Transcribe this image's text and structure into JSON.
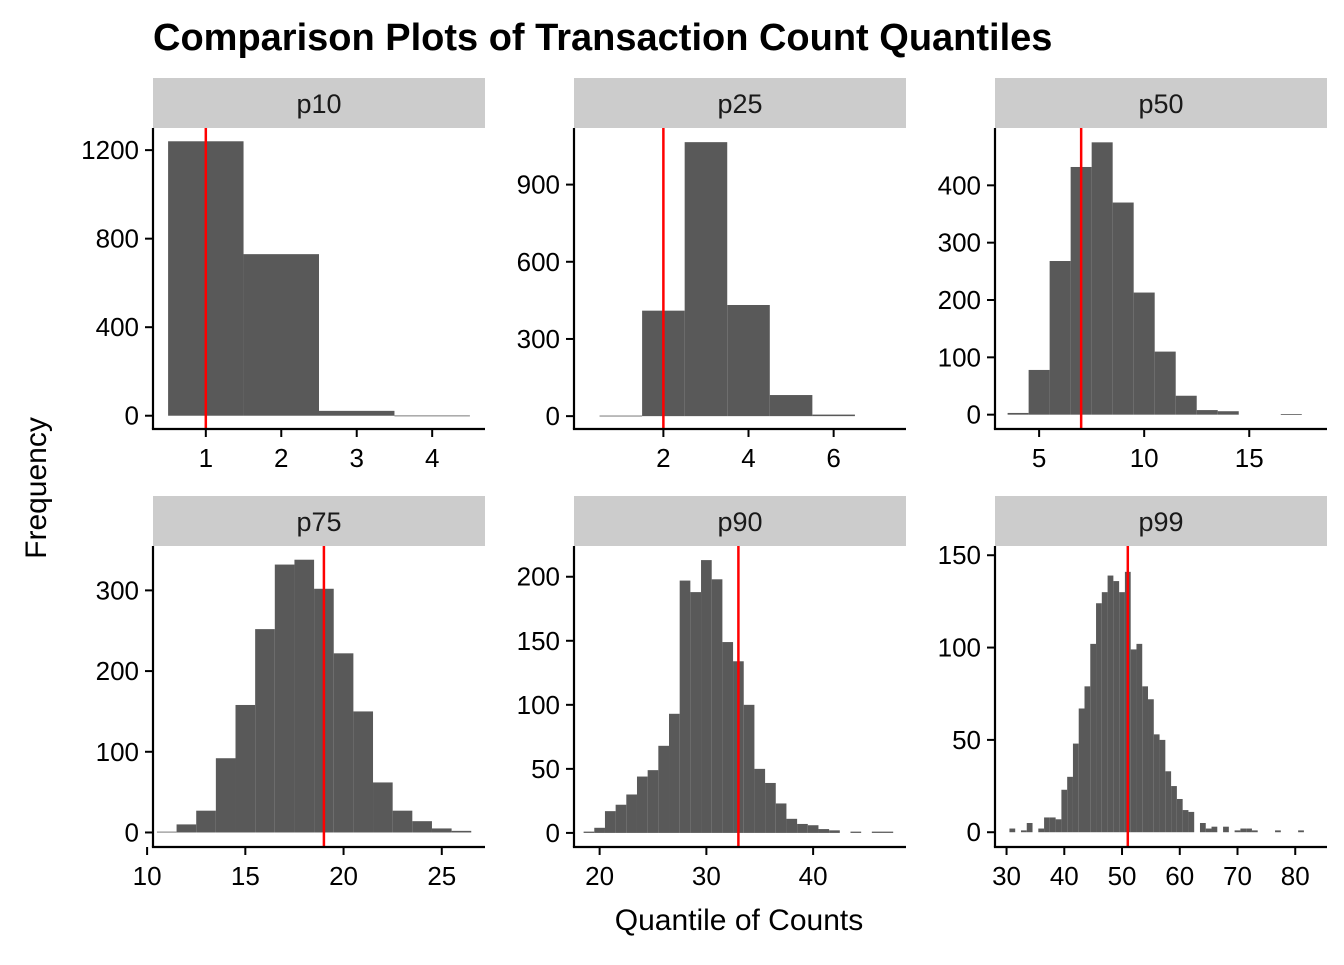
{
  "chart_data": {
    "type": "bar",
    "title": "Comparison Plots of Transaction Count Quantiles",
    "xlabel": "Quantile of Counts",
    "ylabel": "Frequency",
    "grid": false,
    "bar_color": "#595959",
    "reference_line_color": "#ff0000",
    "strip_color": "#cccccc",
    "panels": [
      {
        "label": "p10",
        "xlim": [
          0.3,
          4.7
        ],
        "ylim": [
          -60,
          1300
        ],
        "xticks": [
          1,
          2,
          3,
          4
        ],
        "yticks": [
          0,
          400,
          800,
          1200
        ],
        "bin_width": 1,
        "bins": [
          [
            1,
            1240
          ],
          [
            2,
            730
          ],
          [
            3,
            22
          ],
          [
            4,
            1
          ]
        ],
        "reference_line": 1
      },
      {
        "label": "p25",
        "xlim": [
          -0.1,
          7.7
        ],
        "ylim": [
          -50,
          1120
        ],
        "xticks": [
          2,
          4,
          6
        ],
        "yticks": [
          0,
          300,
          600,
          900
        ],
        "bin_width": 1,
        "bins": [
          [
            1,
            2
          ],
          [
            2,
            410
          ],
          [
            3,
            1065
          ],
          [
            4,
            432
          ],
          [
            5,
            82
          ],
          [
            6,
            6
          ]
        ],
        "reference_line": 2
      },
      {
        "label": "p50",
        "xlim": [
          2.9,
          18.7
        ],
        "ylim": [
          -25,
          500
        ],
        "xticks": [
          5,
          10,
          15
        ],
        "yticks": [
          0,
          100,
          200,
          300,
          400
        ],
        "bin_width": 1,
        "bins": [
          [
            4,
            3
          ],
          [
            5,
            78
          ],
          [
            6,
            268
          ],
          [
            7,
            432
          ],
          [
            8,
            475
          ],
          [
            9,
            370
          ],
          [
            10,
            213
          ],
          [
            11,
            110
          ],
          [
            12,
            33
          ],
          [
            13,
            8
          ],
          [
            14,
            6
          ],
          [
            17,
            1
          ]
        ],
        "reference_line": 7
      },
      {
        "label": "p75",
        "xlim": [
          10.3,
          27.2
        ],
        "ylim": [
          -18,
          355
        ],
        "xticks": [
          10,
          15,
          20,
          25
        ],
        "yticks": [
          0,
          100,
          200,
          300
        ],
        "bin_width": 1,
        "bins": [
          [
            11,
            1
          ],
          [
            12,
            10
          ],
          [
            13,
            27
          ],
          [
            14,
            92
          ],
          [
            15,
            158
          ],
          [
            16,
            252
          ],
          [
            17,
            332
          ],
          [
            18,
            338
          ],
          [
            19,
            302
          ],
          [
            20,
            222
          ],
          [
            21,
            150
          ],
          [
            22,
            62
          ],
          [
            23,
            27
          ],
          [
            24,
            14
          ],
          [
            25,
            5
          ],
          [
            26,
            2
          ]
        ],
        "reference_line": 19
      },
      {
        "label": "p90",
        "xlim": [
          17.6,
          48.7
        ],
        "ylim": [
          -11,
          224
        ],
        "xticks": [
          20,
          30,
          40
        ],
        "yticks": [
          0,
          50,
          100,
          150,
          200
        ],
        "bin_width": 1,
        "bins": [
          [
            19,
            1
          ],
          [
            20,
            4
          ],
          [
            21,
            17
          ],
          [
            22,
            22
          ],
          [
            23,
            30
          ],
          [
            24,
            44
          ],
          [
            25,
            49
          ],
          [
            26,
            68
          ],
          [
            27,
            93
          ],
          [
            28,
            197
          ],
          [
            29,
            188
          ],
          [
            30,
            213
          ],
          [
            31,
            198
          ],
          [
            32,
            149
          ],
          [
            33,
            134
          ],
          [
            34,
            100
          ],
          [
            35,
            50
          ],
          [
            36,
            39
          ],
          [
            37,
            23
          ],
          [
            38,
            11
          ],
          [
            39,
            7
          ],
          [
            40,
            6
          ],
          [
            41,
            3
          ],
          [
            42,
            2
          ],
          [
            44,
            1
          ],
          [
            46,
            1
          ],
          [
            47,
            1
          ]
        ],
        "reference_line": 33
      },
      {
        "label": "p99",
        "xlim": [
          28.0,
          85.5
        ],
        "ylim": [
          -8,
          155
        ],
        "xticks": [
          30,
          40,
          50,
          60,
          70,
          80
        ],
        "yticks": [
          0,
          50,
          100,
          150
        ],
        "bin_width": 1,
        "bins": [
          [
            31,
            2
          ],
          [
            33,
            1
          ],
          [
            34,
            5
          ],
          [
            36,
            2
          ],
          [
            37,
            8
          ],
          [
            38,
            8
          ],
          [
            39,
            7
          ],
          [
            40,
            23
          ],
          [
            41,
            30
          ],
          [
            42,
            48
          ],
          [
            43,
            67
          ],
          [
            44,
            79
          ],
          [
            45,
            102
          ],
          [
            46,
            124
          ],
          [
            47,
            130
          ],
          [
            48,
            139
          ],
          [
            49,
            136
          ],
          [
            50,
            130
          ],
          [
            51,
            141
          ],
          [
            52,
            99
          ],
          [
            53,
            102
          ],
          [
            54,
            79
          ],
          [
            55,
            72
          ],
          [
            56,
            53
          ],
          [
            57,
            50
          ],
          [
            58,
            33
          ],
          [
            59,
            25
          ],
          [
            60,
            18
          ],
          [
            61,
            12
          ],
          [
            62,
            11
          ],
          [
            64,
            5
          ],
          [
            65,
            2
          ],
          [
            66,
            3
          ],
          [
            68,
            3
          ],
          [
            70,
            1
          ],
          [
            71,
            2
          ],
          [
            72,
            2
          ],
          [
            73,
            1
          ],
          [
            77,
            1
          ],
          [
            81,
            1
          ]
        ],
        "reference_line": 51
      }
    ]
  }
}
